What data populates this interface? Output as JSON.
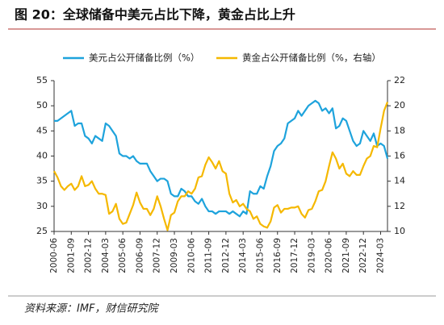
{
  "chart_data": {
    "type": "line",
    "title": "图 20：全球储备中美元占比下降，黄金占比上升",
    "source": "资料来源：IMF，财信研究院",
    "categories": [
      "2000-06",
      null,
      null,
      null,
      null,
      "2001-09",
      null,
      null,
      null,
      null,
      "2002-12",
      null,
      null,
      null,
      null,
      "2004-03",
      null,
      null,
      null,
      null,
      "2005-06",
      null,
      null,
      null,
      null,
      "2006-09",
      null,
      null,
      null,
      null,
      "2007-12",
      null,
      null,
      null,
      null,
      "2009-03",
      null,
      null,
      null,
      null,
      "2010-06",
      null,
      null,
      null,
      null,
      "2011-09",
      null,
      null,
      null,
      null,
      "2012-12",
      null,
      null,
      null,
      null,
      "2014-03",
      null,
      null,
      null,
      null,
      "2015-06",
      null,
      null,
      null,
      null,
      "2016-09",
      null,
      null,
      null,
      null,
      "2017-12",
      null,
      null,
      null,
      null,
      "2019-03",
      null,
      null,
      null,
      null,
      "2020-06",
      null,
      null,
      null,
      null,
      "2021-09",
      null,
      null,
      null,
      null,
      "2022-12",
      null,
      null,
      null,
      null,
      "2024-03",
      null,
      null
    ],
    "series": [
      {
        "name": "美元占公开储备比例（%）",
        "color": "#1ea3dc",
        "values": [
          47,
          47,
          47.5,
          48,
          48.5,
          49,
          46,
          46.5,
          46.5,
          44,
          43.5,
          42.5,
          44,
          43.5,
          43,
          46.5,
          46,
          45,
          44,
          40.5,
          40,
          40,
          39.5,
          40,
          39,
          38.5,
          38.5,
          38.5,
          37,
          36,
          35,
          35.5,
          35.5,
          35,
          32.5,
          32,
          32,
          33.5,
          33,
          32,
          32,
          31,
          30.5,
          31.5,
          30,
          29,
          29,
          28.5,
          29,
          29,
          29,
          28.5,
          29,
          28.5,
          28,
          29,
          28.5,
          33,
          32.5,
          32.5,
          34,
          33.5,
          36,
          38,
          41,
          42,
          42.5,
          43.5,
          46.5,
          47,
          47.5,
          49,
          48,
          49,
          50,
          50.5,
          51,
          50.5,
          49,
          49.5,
          48.5,
          49.5,
          45.5,
          46,
          47.5,
          47,
          45,
          43,
          42,
          42.5,
          45,
          44,
          43,
          44.5,
          42,
          42.5,
          42,
          39.5
        ]
      },
      {
        "name": "黄金占公开储备比例（%，右轴）",
        "color": "#f5b800",
        "axis": "y2",
        "values": [
          14.8,
          14.3,
          13.6,
          13.3,
          13.6,
          13.8,
          13.3,
          13.6,
          14.4,
          13.6,
          13.7,
          14.0,
          13.4,
          13.0,
          13.0,
          12.9,
          11.4,
          11.6,
          12.2,
          11.0,
          10.6,
          10.7,
          11.4,
          12.1,
          13.1,
          12.3,
          11.8,
          11.8,
          11.3,
          11.8,
          12.8,
          12.0,
          11.0,
          10.1,
          11.3,
          11.5,
          12.4,
          12.8,
          12.8,
          13.2,
          13.0,
          13.4,
          14.3,
          14.4,
          15.3,
          15.9,
          15.5,
          15.0,
          15.6,
          14.8,
          14.6,
          13.0,
          12.3,
          12.5,
          12.0,
          12.2,
          11.8,
          11.6,
          11.0,
          11.2,
          10.6,
          10.4,
          10.3,
          10.8,
          11.9,
          12.1,
          11.5,
          11.8,
          11.8,
          11.9,
          11.9,
          12.0,
          11.4,
          11.1,
          11.7,
          11.8,
          12.4,
          13.2,
          13.3,
          14.0,
          15.2,
          16.3,
          15.8,
          15.0,
          15.4,
          14.6,
          14.4,
          14.8,
          14.5,
          14.5,
          15.2,
          15.8,
          16.0,
          16.8,
          16.7,
          18.2,
          19.6,
          20.3
        ]
      }
    ],
    "ylim": [
      25,
      55
    ],
    "yticks": [
      25,
      30,
      35,
      40,
      45,
      50,
      55
    ],
    "y2lim": [
      10,
      22
    ],
    "y2ticks": [
      10,
      12,
      14,
      16,
      18,
      20,
      22
    ]
  }
}
